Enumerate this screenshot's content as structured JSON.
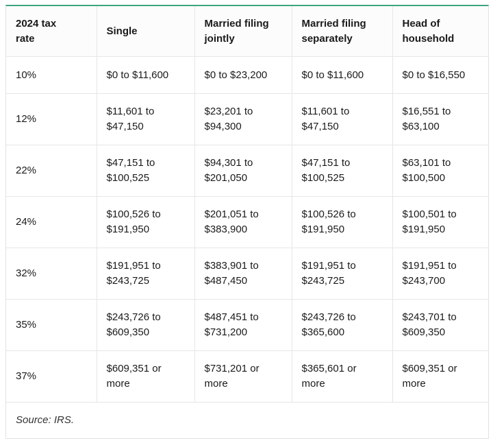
{
  "table": {
    "header": [
      "2024 tax rate",
      "Single",
      "Married filing jointly",
      "Married filing separately",
      "Head of household"
    ],
    "rows": [
      [
        "10%",
        "$0 to $11,600",
        "$0 to $23,200",
        "$0 to $11,600",
        "$0 to $16,550"
      ],
      [
        "12%",
        "$11,601 to $47,150",
        "$23,201 to $94,300",
        "$11,601 to $47,150",
        "$16,551 to $63,100"
      ],
      [
        "22%",
        "$47,151 to $100,525",
        "$94,301 to $201,050",
        "$47,151 to $100,525",
        "$63,101 to $100,500"
      ],
      [
        "24%",
        "$100,526 to $191,950",
        "$201,051 to $383,900",
        "$100,526 to $191,950",
        "$100,501 to $191,950"
      ],
      [
        "32%",
        "$191,951 to $243,725",
        "$383,901 to $487,450",
        "$191,951 to $243,725",
        "$191,951 to $243,700"
      ],
      [
        "35%",
        "$243,726 to $609,350",
        "$487,451 to $731,200",
        "$243,726 to $365,600",
        "$243,701 to $609,350"
      ],
      [
        "37%",
        "$609,351 or more",
        "$731,201 or more",
        "$365,601 or more",
        "$609,351 or more"
      ]
    ],
    "source": "Source: IRS."
  }
}
